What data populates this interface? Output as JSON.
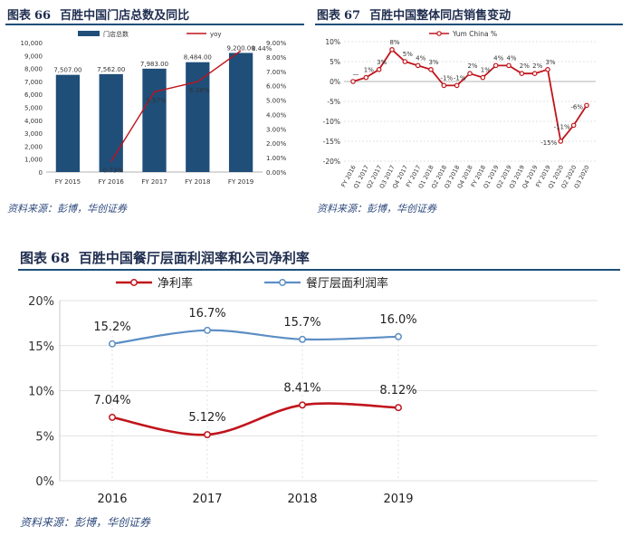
{
  "colors": {
    "navy": "#1f4e79",
    "title": "#1f2d4f",
    "red": "#c0141b",
    "blue": "#5b8ec4",
    "source": "#2e4a7d"
  },
  "fig66": {
    "label": "图表",
    "num": "66",
    "title": "百胜中国门店总数及同比",
    "source": "资料来源：彭博，华创证券"
  },
  "fig67": {
    "label": "图表",
    "num": "67",
    "title": "百胜中国整体同店销售变动",
    "source": "资料来源：彭博，华创证券"
  },
  "fig68": {
    "label": "图表",
    "num": "68",
    "title": "百胜中国餐厅层面利润率和公司净利率",
    "source": "资料来源：彭博，华创证券"
  },
  "chart_data": [
    {
      "id": "fig66",
      "type": "bar",
      "categories": [
        "FY 2015",
        "FY 2016",
        "FY 2017",
        "FY 2018",
        "FY 2019"
      ],
      "series": [
        {
          "name": "门店总数",
          "kind": "bar",
          "axis": "left",
          "values": [
            7507,
            7562,
            7983,
            8484,
            9200
          ],
          "labels": [
            "7,507.00",
            "7,562.00",
            "7,983.00",
            "8,484.00",
            "9,200.00"
          ]
        },
        {
          "name": "yoy",
          "kind": "line",
          "axis": "right",
          "values": [
            null,
            0.73,
            5.57,
            6.28,
            8.44
          ],
          "labels": [
            "",
            "0.73%",
            "5.57%",
            "6.28%",
            "8.44%"
          ]
        }
      ],
      "left_axis": {
        "min": 0,
        "max": 10000,
        "step": 1000,
        "ticks": [
          "0",
          "1,000",
          "2,000",
          "3,000",
          "4,000",
          "5,000",
          "6,000",
          "7,000",
          "8,000",
          "9,000",
          "10,000"
        ]
      },
      "right_axis": {
        "min": 0,
        "max": 9,
        "step": 1,
        "ticks": [
          "0.00%",
          "1.00%",
          "2.00%",
          "3.00%",
          "4.00%",
          "5.00%",
          "6.00%",
          "7.00%",
          "8.00%",
          "9.00%"
        ]
      },
      "legend": [
        "门店总数",
        "yoy"
      ],
      "legend_position": "top"
    },
    {
      "id": "fig67",
      "type": "line",
      "categories": [
        "FY 2016",
        "Q1 2017",
        "Q2 2017",
        "Q3 2017",
        "Q4 2017",
        "FY 2017",
        "Q1 2018",
        "Q2 2018",
        "Q3 2018",
        "Q4 2018",
        "FY 2018",
        "Q1 2019",
        "Q2 2019",
        "Q3 2019",
        "Q4 2019",
        "FY 2019",
        "Q1 2020",
        "Q2 2020",
        "Q3 2020"
      ],
      "series": [
        {
          "name": "Yum China %",
          "values": [
            0,
            1,
            3,
            8,
            5,
            4,
            3,
            -1,
            -1,
            2,
            1,
            4,
            4,
            2,
            2,
            3,
            -15,
            -11,
            -6
          ],
          "labels": [
            "—",
            "1%",
            "3%",
            "8%",
            "5%",
            "4%",
            "3%",
            "-1%",
            "-1%",
            "2%",
            "1%",
            "4%",
            "4%",
            "2%",
            "2%",
            "3%",
            "-15%",
            "-11%",
            "-6%"
          ]
        }
      ],
      "y_axis": {
        "min": -20,
        "max": 10,
        "step": 5,
        "ticks": [
          "-20%",
          "-15%",
          "-10%",
          "-5%",
          "0%",
          "5%",
          "10%"
        ]
      },
      "legend": [
        "Yum China %"
      ],
      "legend_position": "top"
    },
    {
      "id": "fig68",
      "type": "line",
      "categories": [
        "2016",
        "2017",
        "2018",
        "2019"
      ],
      "series": [
        {
          "name": "净利率",
          "values": [
            7.04,
            5.12,
            8.41,
            8.12
          ],
          "labels": [
            "7.04%",
            "5.12%",
            "8.41%",
            "8.12%"
          ]
        },
        {
          "name": "餐厅层面利润率",
          "values": [
            15.2,
            16.7,
            15.7,
            16.0
          ],
          "labels": [
            "15.2%",
            "16.7%",
            "15.7%",
            "16.0%"
          ]
        }
      ],
      "y_axis": {
        "min": 0,
        "max": 20,
        "step": 5,
        "ticks": [
          "0%",
          "5%",
          "10%",
          "15%",
          "20%"
        ]
      },
      "legend": [
        "净利率",
        "餐厅层面利润率"
      ],
      "legend_position": "top"
    }
  ]
}
